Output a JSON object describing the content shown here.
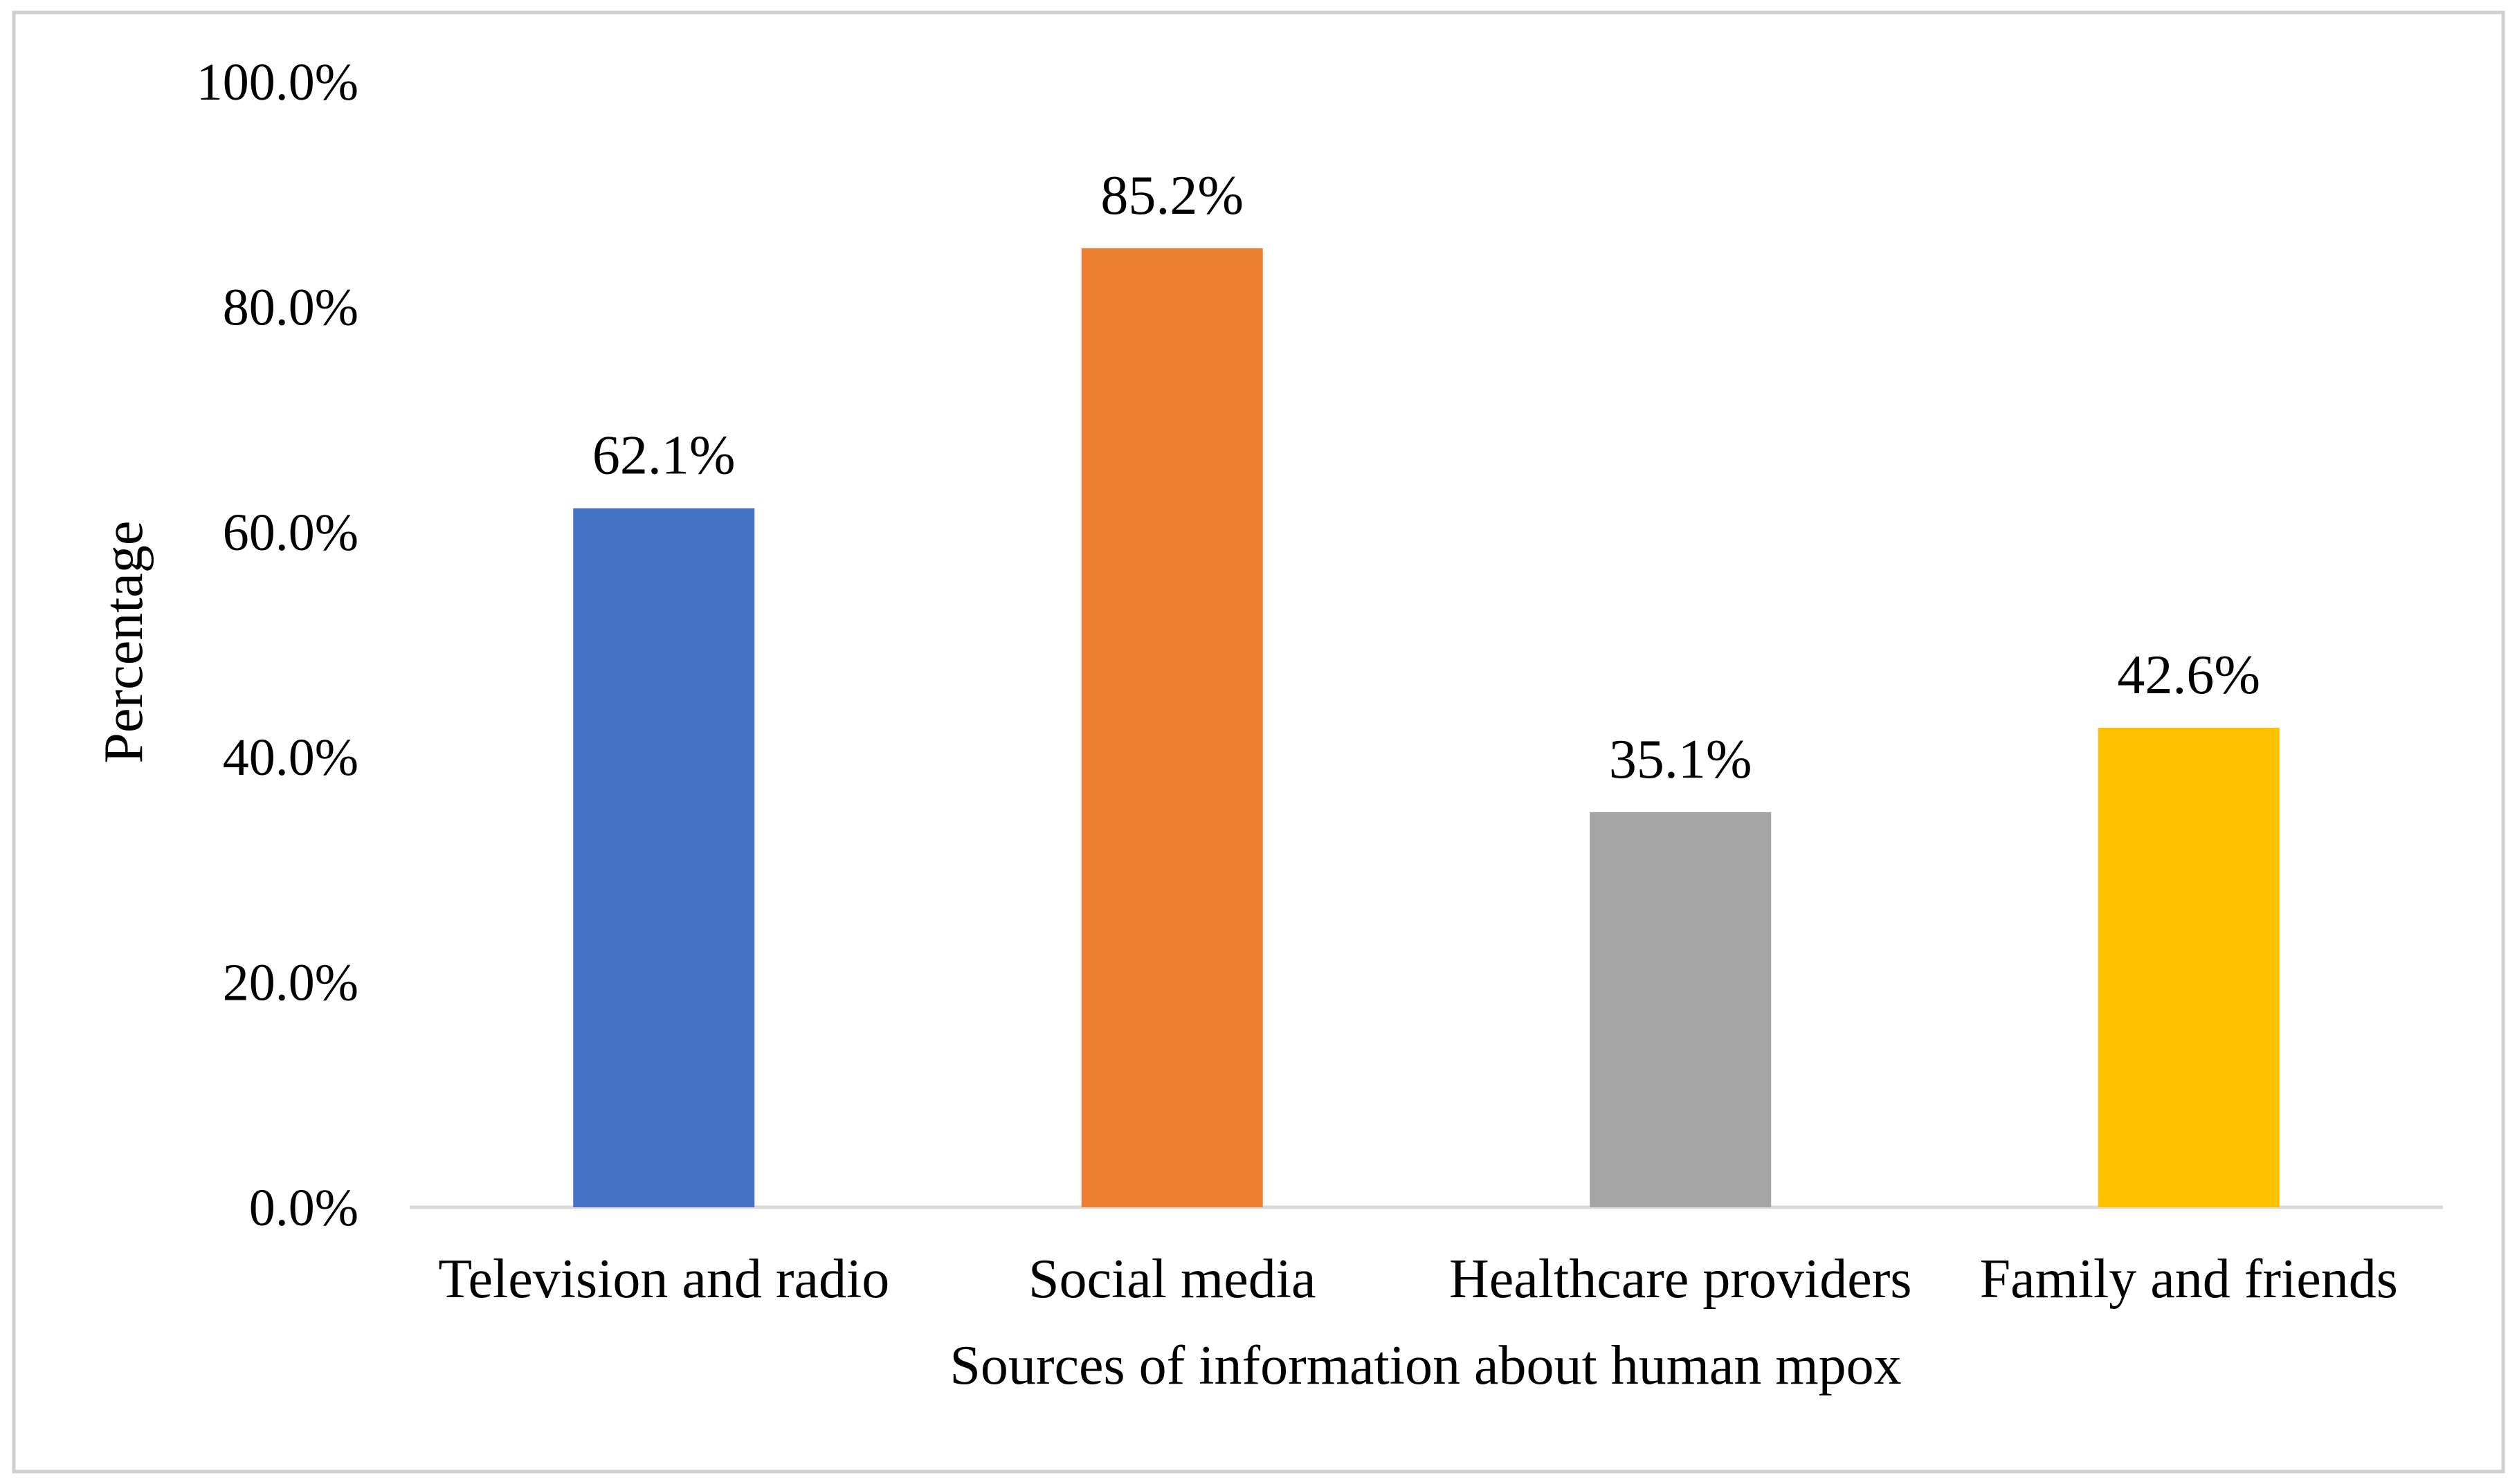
{
  "chart_data": {
    "type": "bar",
    "title": "",
    "xlabel": "Sources of information about human mpox",
    "ylabel": "Percentage",
    "categories": [
      "Television and radio",
      "Social media",
      "Healthcare providers",
      "Family and friends"
    ],
    "values": [
      62.1,
      85.2,
      35.1,
      42.6
    ],
    "value_labels": [
      "62.1%",
      "85.2%",
      "35.1%",
      "42.6%"
    ],
    "colors": [
      "#4472C4",
      "#ED7D31",
      "#A5A5A5",
      "#FFC000"
    ],
    "ylim": [
      0,
      100
    ],
    "yticks": [
      0,
      20,
      40,
      60,
      80,
      100
    ],
    "ytick_labels": [
      "0.0%",
      "20.0%",
      "40.0%",
      "60.0%",
      "80.0%",
      "100.0%"
    ],
    "grid": false,
    "legend": "none"
  }
}
